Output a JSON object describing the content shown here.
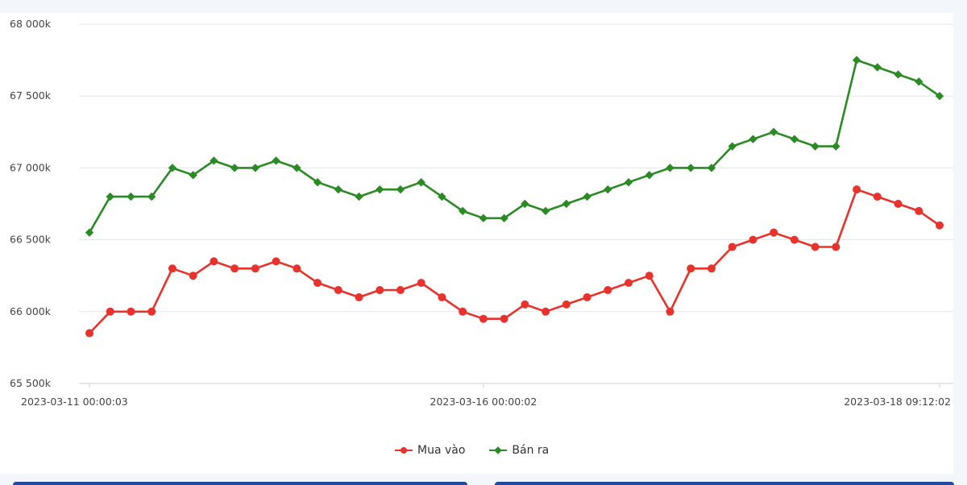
{
  "chart_data": {
    "type": "line",
    "x": [
      "2023-03-11 00:00:03",
      "",
      "",
      "",
      "",
      "",
      "",
      "",
      "",
      "",
      "",
      "",
      "",
      "",
      "",
      "",
      "",
      "",
      "",
      "2023-03-16 00:00:02",
      "",
      "",
      "",
      "",
      "",
      "",
      "",
      "",
      "",
      "",
      "",
      "",
      "",
      "",
      "",
      "",
      "",
      "",
      "",
      "",
      "",
      "2023-03-18 09:12:02"
    ],
    "x_tick_labels": [
      "2023-03-11 00:00:03",
      "2023-03-16 00:00:02",
      "2023-03-18 09:12:02"
    ],
    "y_tick_labels": [
      "65 500k",
      "66 000k",
      "66 500k",
      "67 000k",
      "67 500k",
      "68 000k"
    ],
    "ylim": [
      65500,
      68000
    ],
    "grid": true,
    "legend_position": "bottom",
    "series": [
      {
        "name": "Mua vào",
        "color": "#e8322b",
        "marker": "circle",
        "values": [
          65850,
          66000,
          66000,
          66000,
          66300,
          66250,
          66350,
          66300,
          66300,
          66350,
          66300,
          66200,
          66150,
          66100,
          66150,
          66150,
          66200,
          66100,
          66000,
          65950,
          65950,
          66050,
          66000,
          66050,
          66100,
          66150,
          66200,
          66250,
          66000,
          66300,
          66300,
          66450,
          66500,
          66550,
          66500,
          66450,
          66450,
          66850,
          66800,
          66750,
          66700,
          66600
        ]
      },
      {
        "name": "Bán ra",
        "color": "#2a8a23",
        "marker": "diamond",
        "values": [
          66550,
          66800,
          66800,
          66800,
          67000,
          66950,
          67050,
          67000,
          67000,
          67050,
          67000,
          66900,
          66850,
          66800,
          66850,
          66850,
          66900,
          66800,
          66700,
          66650,
          66650,
          66750,
          66700,
          66750,
          66800,
          66850,
          66900,
          66950,
          67000,
          67000,
          67000,
          67150,
          67200,
          67250,
          67200,
          67150,
          67150,
          67750,
          67700,
          67650,
          67600,
          67500
        ]
      }
    ]
  },
  "legend": {
    "buy_label": "Mua vào",
    "sell_label": "Bán ra"
  }
}
